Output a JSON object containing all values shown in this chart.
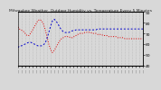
{
  "title": "Milwaukee Weather  Outdoor Humidity vs. Temperature Every 5 Minutes",
  "bg_color": "#d8d8d8",
  "plot_bg": "#d8d8d8",
  "red_line_color": "#dd0000",
  "blue_line_color": "#0000cc",
  "temp_data": [
    76,
    74,
    73,
    72,
    70,
    68,
    68,
    70,
    73,
    76,
    79,
    82,
    83,
    82,
    79,
    74,
    67,
    60,
    55,
    52,
    54,
    57,
    60,
    63,
    65,
    66,
    67,
    67,
    67,
    66,
    66,
    67,
    68,
    69,
    70,
    70,
    70,
    71,
    71,
    71,
    71,
    70,
    70,
    70,
    69,
    69,
    69,
    68,
    68,
    68,
    67,
    67,
    67,
    67,
    67,
    66,
    66,
    66,
    66,
    65,
    65,
    65,
    65,
    65,
    65,
    65,
    65,
    65,
    65,
    65
  ],
  "hum_data": [
    20,
    22,
    22,
    23,
    24,
    25,
    26,
    26,
    25,
    24,
    23,
    22,
    22,
    22,
    23,
    25,
    30,
    37,
    44,
    50,
    52,
    50,
    47,
    43,
    40,
    38,
    37,
    37,
    37,
    38,
    39,
    39,
    40,
    40,
    40,
    40,
    40,
    40,
    40,
    40,
    40,
    40,
    40,
    40,
    41,
    41,
    41,
    41,
    41,
    41,
    41,
    41,
    41,
    41,
    41,
    41,
    41,
    41,
    41,
    41,
    41,
    41,
    41,
    41,
    41,
    41,
    41,
    41,
    41,
    41
  ],
  "temp_ylim": [
    40,
    90
  ],
  "hum_ylim": [
    0,
    60
  ],
  "ytick_values": [
    90,
    80,
    70,
    60,
    50,
    40
  ],
  "n_xticks": 35,
  "grid_color": "#aaaaaa",
  "grid_style": ":"
}
